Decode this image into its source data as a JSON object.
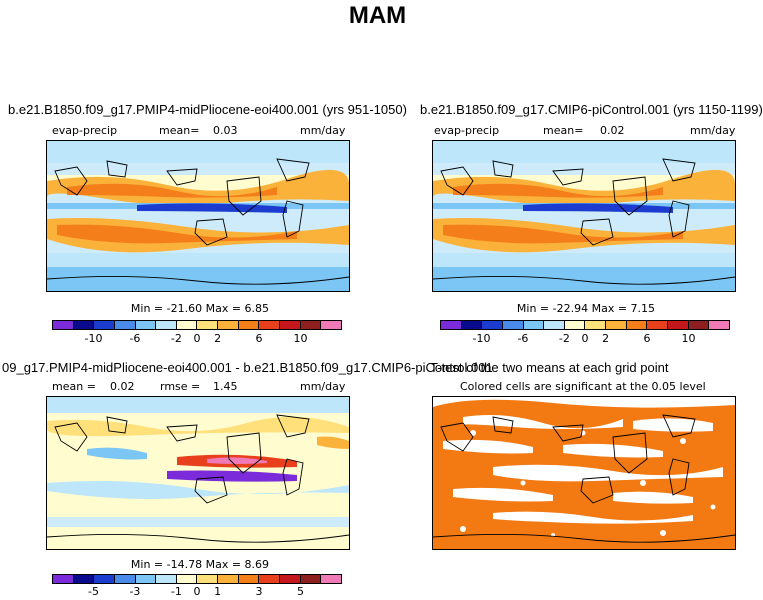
{
  "title": "MAM",
  "panels": [
    {
      "title": "b.e21.B1850.f09_g17.PMIP4-midPliocene-eoi400.001 (yrs 951-1050)",
      "var_label": "evap-precip",
      "stat_label": "mean=",
      "stat_value": "0.03",
      "units": "mm/day",
      "minmax": "Min = -21.60 Max =   6.85",
      "ticks": [
        "-10",
        "-6",
        "-2",
        "0",
        "2",
        "6",
        "10"
      ]
    },
    {
      "title": "b.e21.B1850.f09_g17.CMIP6-piControl.001 (yrs 1150-1199)",
      "var_label": "evap-precip",
      "stat_label": "mean=",
      "stat_value": "0.02",
      "units": "mm/day",
      "minmax": "Min = -22.94 Max =   7.15",
      "ticks": [
        "-10",
        "-6",
        "-2",
        "0",
        "2",
        "6",
        "10"
      ]
    },
    {
      "title": "09_g17.PMIP4-midPliocene-eoi400.001 - b.e21.B1850.f09_g17.CMIP6-piControl.001",
      "stat_label": "mean =",
      "stat_value": "0.02",
      "rmse_label": "rmse =",
      "rmse_value": "1.45",
      "units": "mm/day",
      "minmax": "Min = -14.78 Max =   8.69",
      "ticks": [
        "-5",
        "-3",
        "-1",
        "0",
        "1",
        "3",
        "5"
      ]
    },
    {
      "title": "T-test of the two means at each grid point",
      "subtitle": "Colored cells are significant at the 0.05 level"
    }
  ],
  "colors": {
    "scale": [
      "#7b2bd9",
      "#0a0a8c",
      "#1c3ccf",
      "#4a8ae8",
      "#7bc6f5",
      "#bde6fb",
      "#fffcd0",
      "#ffe07a",
      "#fbb23a",
      "#f47e1a",
      "#e8401c",
      "#c4171c",
      "#8e1f1f",
      "#f07ab8"
    ],
    "significance": "#f37913"
  }
}
